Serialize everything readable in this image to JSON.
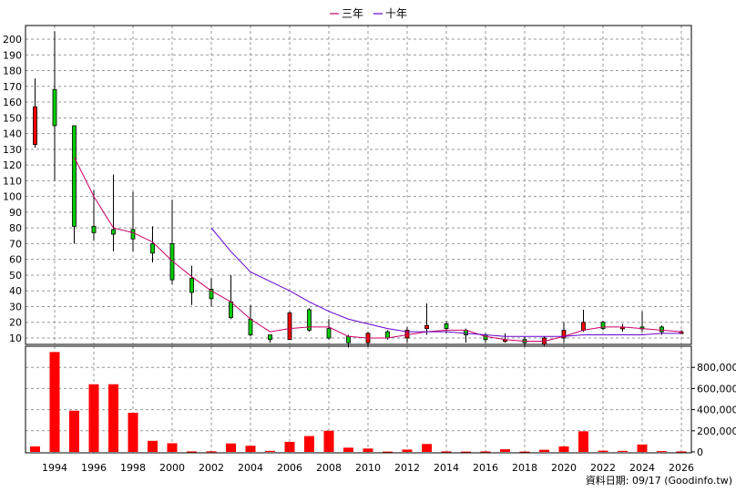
{
  "chart_data": {
    "type": "candlestick",
    "legend": [
      {
        "name": "三年",
        "color": "#cc0066"
      },
      {
        "name": "十年",
        "color": "#6600cc"
      }
    ],
    "legend_position": "top-center",
    "grid": true,
    "price_axis": {
      "ticks": [
        10,
        20,
        30,
        40,
        50,
        60,
        70,
        80,
        90,
        100,
        110,
        120,
        130,
        140,
        150,
        160,
        170,
        180,
        190,
        200
      ]
    },
    "volume_axis": {
      "ticks": [
        0,
        200000,
        400000,
        600000,
        800000
      ],
      "tick_labels": [
        "0",
        "200,000",
        "400,000",
        "600,000",
        "800,000"
      ]
    },
    "x_tick_labels": [
      "1994",
      "1996",
      "1998",
      "2000",
      "2002",
      "2004",
      "2006",
      "2008",
      "2010",
      "2012",
      "2014",
      "2016",
      "2018",
      "2020",
      "2022",
      "2024",
      "2026"
    ],
    "colors": {
      "up": "#ff0000",
      "down": "#00cc00",
      "volume": "#ff0000",
      "grid": "#999999"
    },
    "candles": [
      {
        "year": 1993,
        "open": 133,
        "high": 175,
        "low": 131,
        "close": 157,
        "volume": 52000
      },
      {
        "year": 1994,
        "open": 168,
        "high": 205,
        "low": 110,
        "close": 145,
        "volume": 945000
      },
      {
        "year": 1995,
        "open": 145,
        "high": 145,
        "low": 70,
        "close": 81,
        "volume": 390000
      },
      {
        "year": 1996,
        "open": 81,
        "high": 104,
        "low": 72,
        "close": 77,
        "volume": 640000
      },
      {
        "year": 1997,
        "open": 79,
        "high": 114,
        "low": 65,
        "close": 76,
        "volume": 640000
      },
      {
        "year": 1998,
        "open": 79,
        "high": 103,
        "low": 65,
        "close": 73,
        "volume": 370000
      },
      {
        "year": 1999,
        "open": 70,
        "high": 81,
        "low": 58,
        "close": 64,
        "volume": 105000
      },
      {
        "year": 2000,
        "open": 70,
        "high": 98,
        "low": 44,
        "close": 47,
        "volume": 82000
      },
      {
        "year": 2001,
        "open": 48,
        "high": 56,
        "low": 31,
        "close": 39,
        "volume": 5000
      },
      {
        "year": 2002,
        "open": 41,
        "high": 48,
        "low": 30,
        "close": 35,
        "volume": 6000
      },
      {
        "year": 2003,
        "open": 33,
        "high": 50,
        "low": 22,
        "close": 23,
        "volume": 80000
      },
      {
        "year": 2004,
        "open": 22,
        "high": 31,
        "low": 11,
        "close": 12,
        "volume": 58000
      },
      {
        "year": 2005,
        "open": 12,
        "high": 12,
        "low": 7,
        "close": 9,
        "volume": 10000
      },
      {
        "year": 2006,
        "open": 9,
        "high": 27,
        "low": 9,
        "close": 26,
        "volume": 95000
      },
      {
        "year": 2007,
        "open": 28,
        "high": 29,
        "low": 14,
        "close": 15,
        "volume": 150000
      },
      {
        "year": 2008,
        "open": 16,
        "high": 22,
        "low": 9,
        "close": 10,
        "volume": 200000
      },
      {
        "year": 2009,
        "open": 11,
        "high": 12,
        "low": 4,
        "close": 7,
        "volume": 40000
      },
      {
        "year": 2010,
        "open": 7,
        "high": 14,
        "low": 5,
        "close": 13,
        "volume": 32000
      },
      {
        "year": 2011,
        "open": 14,
        "high": 15,
        "low": 9,
        "close": 10,
        "volume": 3000
      },
      {
        "year": 2012,
        "open": 10,
        "high": 17,
        "low": 7,
        "close": 15,
        "volume": 22000
      },
      {
        "year": 2013,
        "open": 16,
        "high": 32,
        "low": 12,
        "close": 18,
        "volume": 75000
      },
      {
        "year": 2014,
        "open": 19,
        "high": 21,
        "low": 13,
        "close": 16,
        "volume": 5000
      },
      {
        "year": 2015,
        "open": 15,
        "high": 16,
        "low": 7,
        "close": 12,
        "volume": 3000
      },
      {
        "year": 2016,
        "open": 12,
        "high": 13,
        "low": 7,
        "close": 9,
        "volume": 5000
      },
      {
        "year": 2017,
        "open": 8,
        "high": 13,
        "low": 7,
        "close": 9,
        "volume": 25000
      },
      {
        "year": 2018,
        "open": 9,
        "high": 11,
        "low": 5,
        "close": 7,
        "volume": 3000
      },
      {
        "year": 2019,
        "open": 6,
        "high": 11,
        "low": 5,
        "close": 10,
        "volume": 20000
      },
      {
        "year": 2020,
        "open": 10,
        "high": 20,
        "low": 7,
        "close": 15,
        "volume": 52000
      },
      {
        "year": 2021,
        "open": 15,
        "high": 28,
        "low": 14,
        "close": 20,
        "volume": 195000
      },
      {
        "year": 2022,
        "open": 20,
        "high": 21,
        "low": 15,
        "close": 16,
        "volume": 12000
      },
      {
        "year": 2023,
        "open": 16,
        "high": 19,
        "low": 14,
        "close": 17,
        "volume": 10000
      },
      {
        "year": 2024,
        "open": 17,
        "high": 27,
        "low": 14,
        "close": 16,
        "volume": 70000
      },
      {
        "year": 2025,
        "open": 17,
        "high": 18,
        "low": 12,
        "close": 14,
        "volume": 8000
      },
      {
        "year": 2026,
        "open": 14,
        "high": 15,
        "low": 13,
        "close": 14,
        "volume": 5000
      }
    ],
    "ma_3y": [
      {
        "year": 1995,
        "value": 125
      },
      {
        "year": 1996,
        "value": 100
      },
      {
        "year": 1997,
        "value": 80
      },
      {
        "year": 1998,
        "value": 77
      },
      {
        "year": 1999,
        "value": 71
      },
      {
        "year": 2000,
        "value": 59
      },
      {
        "year": 2001,
        "value": 49
      },
      {
        "year": 2002,
        "value": 40
      },
      {
        "year": 2003,
        "value": 33
      },
      {
        "year": 2004,
        "value": 22
      },
      {
        "year": 2005,
        "value": 14
      },
      {
        "year": 2006,
        "value": 16
      },
      {
        "year": 2007,
        "value": 17
      },
      {
        "year": 2008,
        "value": 17
      },
      {
        "year": 2009,
        "value": 11
      },
      {
        "year": 2010,
        "value": 10
      },
      {
        "year": 2011,
        "value": 10
      },
      {
        "year": 2012,
        "value": 12
      },
      {
        "year": 2013,
        "value": 14
      },
      {
        "year": 2014,
        "value": 15
      },
      {
        "year": 2015,
        "value": 15
      },
      {
        "year": 2016,
        "value": 11
      },
      {
        "year": 2017,
        "value": 9
      },
      {
        "year": 2018,
        "value": 8
      },
      {
        "year": 2019,
        "value": 8
      },
      {
        "year": 2020,
        "value": 11
      },
      {
        "year": 2021,
        "value": 15
      },
      {
        "year": 2022,
        "value": 17
      },
      {
        "year": 2023,
        "value": 17
      },
      {
        "year": 2024,
        "value": 16
      },
      {
        "year": 2025,
        "value": 15
      },
      {
        "year": 2026,
        "value": 14
      }
    ],
    "ma_10y": [
      {
        "year": 2002,
        "value": 80
      },
      {
        "year": 2003,
        "value": 65
      },
      {
        "year": 2004,
        "value": 52
      },
      {
        "year": 2005,
        "value": 46
      },
      {
        "year": 2006,
        "value": 40
      },
      {
        "year": 2007,
        "value": 33
      },
      {
        "year": 2008,
        "value": 27
      },
      {
        "year": 2009,
        "value": 22
      },
      {
        "year": 2010,
        "value": 19
      },
      {
        "year": 2011,
        "value": 16
      },
      {
        "year": 2012,
        "value": 14
      },
      {
        "year": 2013,
        "value": 14
      },
      {
        "year": 2014,
        "value": 14
      },
      {
        "year": 2015,
        "value": 13
      },
      {
        "year": 2016,
        "value": 12
      },
      {
        "year": 2017,
        "value": 11
      },
      {
        "year": 2018,
        "value": 11
      },
      {
        "year": 2019,
        "value": 11
      },
      {
        "year": 2020,
        "value": 11
      },
      {
        "year": 2021,
        "value": 12
      },
      {
        "year": 2022,
        "value": 12
      },
      {
        "year": 2023,
        "value": 12
      },
      {
        "year": 2024,
        "value": 12
      },
      {
        "year": 2025,
        "value": 13
      },
      {
        "year": 2026,
        "value": 13
      }
    ]
  },
  "footer": {
    "text": "資料日期: 09/17  (Goodinfo.tw)"
  }
}
